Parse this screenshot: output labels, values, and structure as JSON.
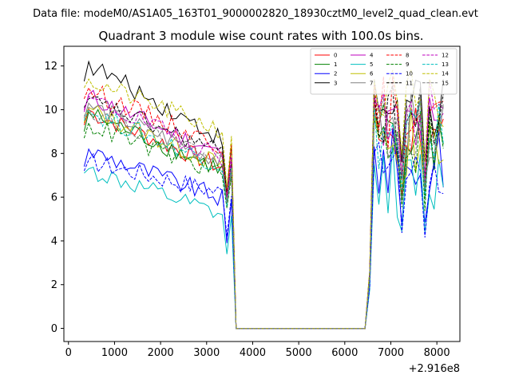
{
  "chart_data": {
    "type": "line",
    "suptitle": "Data file: modeM0/AS1A05_163T01_9000002820_18930cztM0_level2_quad_clean.evt",
    "title": "Quadrant 3 module wise count rates with 100.0s bins.",
    "xlabel": "",
    "ylabel": "",
    "x_offset_label": "+2.916e8",
    "xlim": [
      -100,
      8500
    ],
    "ylim": [
      -0.6,
      12.9
    ],
    "xticks": [
      0,
      1000,
      2000,
      3000,
      4000,
      5000,
      6000,
      7000,
      8000
    ],
    "xtick_labels": [
      "0",
      "1000",
      "2000",
      "3000",
      "4000",
      "5000",
      "6000",
      "7000",
      "8000"
    ],
    "yticks": [
      0,
      2,
      4,
      6,
      8,
      10,
      12
    ],
    "ytick_labels": [
      "0",
      "2",
      "4",
      "6",
      "8",
      "10",
      "12"
    ],
    "legend_position": "top-right",
    "legend_columns": 4,
    "series": [
      {
        "name": "0",
        "color": "#ff0000",
        "dash": "solid",
        "start": 9.3,
        "peak": 10.0,
        "end_a": 7.3,
        "dip": 5.8,
        "late": 9.3
      },
      {
        "name": "1",
        "color": "#008000",
        "dash": "solid",
        "start": 9.0,
        "peak": 9.9,
        "end_a": 7.2,
        "dip": 5.6,
        "late": 8.9
      },
      {
        "name": "2",
        "color": "#0000ff",
        "dash": "solid",
        "start": 7.4,
        "peak": 8.2,
        "end_a": 5.9,
        "dip": 3.9,
        "late": 7.7
      },
      {
        "name": "3",
        "color": "#000000",
        "dash": "solid",
        "start": 11.3,
        "peak": 12.2,
        "end_a": 8.6,
        "dip": 6.2,
        "late": 10.4
      },
      {
        "name": "4",
        "color": "#bf00bf",
        "dash": "solid",
        "start": 9.9,
        "peak": 10.7,
        "end_a": 7.9,
        "dip": 6.0,
        "late": 9.6
      },
      {
        "name": "5",
        "color": "#00bfbf",
        "dash": "solid",
        "start": 7.1,
        "peak": 7.3,
        "end_a": 5.1,
        "dip": 3.4,
        "late": 7.0
      },
      {
        "name": "6",
        "color": "#bfbf00",
        "dash": "solid",
        "start": 9.4,
        "peak": 10.1,
        "end_a": 7.4,
        "dip": 5.9,
        "late": 9.0
      },
      {
        "name": "7",
        "color": "#808080",
        "dash": "solid",
        "start": 9.6,
        "peak": 10.3,
        "end_a": 7.6,
        "dip": 5.9,
        "late": 9.3
      },
      {
        "name": "8",
        "color": "#ff0000",
        "dash": "dashed",
        "start": 10.5,
        "peak": 11.0,
        "end_a": 8.3,
        "dip": 6.1,
        "late": 10.2
      },
      {
        "name": "9",
        "color": "#008000",
        "dash": "dashed",
        "start": 8.7,
        "peak": 9.4,
        "end_a": 7.0,
        "dip": 5.5,
        "late": 8.8
      },
      {
        "name": "10",
        "color": "#0000ff",
        "dash": "dashed",
        "start": 7.2,
        "peak": 7.7,
        "end_a": 6.2,
        "dip": 4.2,
        "late": 7.5
      },
      {
        "name": "11",
        "color": "#000000",
        "dash": "dashed",
        "start": 10.1,
        "peak": 10.5,
        "end_a": 8.0,
        "dip": 6.0,
        "late": 9.8
      },
      {
        "name": "12",
        "color": "#bf00bf",
        "dash": "dashed",
        "start": 10.0,
        "peak": 10.6,
        "end_a": 7.8,
        "dip": 6.0,
        "late": 9.9
      },
      {
        "name": "13",
        "color": "#00bfbf",
        "dash": "dashed",
        "start": 9.5,
        "peak": 10.0,
        "end_a": 7.4,
        "dip": 5.6,
        "late": 9.1
      },
      {
        "name": "14",
        "color": "#bfbf00",
        "dash": "dashed",
        "start": 11.0,
        "peak": 11.4,
        "end_a": 9.0,
        "dip": 6.4,
        "late": 10.6
      },
      {
        "name": "15",
        "color": "#808080",
        "dash": "dashed",
        "start": 9.7,
        "peak": 10.1,
        "end_a": 7.6,
        "dip": 5.7,
        "late": 9.3
      }
    ],
    "segments": {
      "first_start": 340,
      "first_end": 3540,
      "step": 100,
      "gap_start": 3640,
      "gap_end": 6440,
      "second_start": 6540,
      "second_end": 8140
    }
  }
}
